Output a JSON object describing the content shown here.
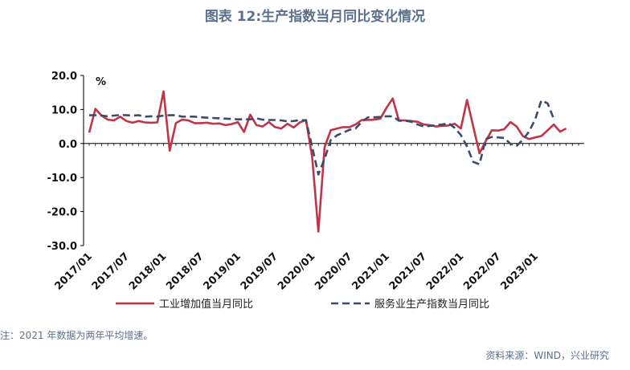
{
  "title": "图表 12:生产指数当月同比变化情况",
  "note": "注：2021 年数据为两年平均增速。",
  "source": "资料来源：WIND，兴业研究",
  "chart_data": {
    "type": "line",
    "ylabel": "%",
    "ylim": [
      -30,
      20
    ],
    "yticks": [
      "20.0",
      "10.0",
      "0.0",
      "-10.0",
      "-20.0",
      "-30.0"
    ],
    "xticks": [
      "2017/01",
      "2017/07",
      "2018/01",
      "2018/07",
      "2019/01",
      "2019/07",
      "2020/01",
      "2020/07",
      "2021/01",
      "2021/07",
      "2022/01",
      "2022/07",
      "2023/01"
    ],
    "x_start": "2017/01",
    "x_end": "2023/09",
    "grid": false,
    "legend": "bottom",
    "series": [
      {
        "name": "工业增加值当月同比",
        "color": "#c0344a",
        "style": "solid",
        "values": [
          3.2,
          10.2,
          8.2,
          7.0,
          6.8,
          7.9,
          6.6,
          6.1,
          6.6,
          6.2,
          6.1,
          6.2,
          15.3,
          -2.1,
          6.0,
          7.0,
          6.8,
          6.0,
          6.0,
          6.1,
          5.8,
          5.9,
          5.4,
          5.7,
          6.3,
          3.4,
          8.5,
          5.4,
          5.0,
          6.3,
          4.8,
          4.4,
          5.8,
          4.7,
          6.2,
          6.9,
          -4.0,
          -25.9,
          -1.1,
          3.9,
          4.4,
          4.8,
          4.8,
          5.6,
          6.9,
          6.9,
          7.0,
          7.3,
          10.5,
          13.2,
          6.8,
          6.8,
          6.6,
          6.4,
          5.6,
          5.4,
          5.0,
          5.2,
          5.3,
          5.8,
          4.4,
          12.8,
          5.0,
          -2.9,
          0.7,
          3.9,
          3.8,
          4.2,
          6.3,
          5.0,
          2.2,
          1.3,
          1.8,
          2.2,
          3.9,
          5.6,
          3.5,
          4.4
        ],
        "y_range_note": "monthly, 2017/01 to 2023/06"
      },
      {
        "name": "服务业生产指数当月同比",
        "color": "#3d4c66",
        "style": "dashed",
        "values": [
          8.3,
          8.3,
          8.2,
          8.0,
          8.2,
          8.4,
          8.3,
          8.2,
          8.3,
          7.9,
          8.0,
          7.9,
          8.2,
          8.3,
          8.3,
          7.9,
          7.9,
          7.9,
          7.7,
          7.6,
          7.5,
          7.4,
          7.3,
          7.2,
          7.1,
          7.1,
          7.1,
          7.4,
          7.0,
          6.9,
          6.9,
          6.8,
          6.5,
          6.6,
          6.9,
          6.8,
          -1.0,
          -9.1,
          -4.5,
          1.0,
          2.4,
          3.2,
          4.0,
          4.4,
          6.4,
          7.7,
          7.7,
          7.8,
          8.0,
          8.0,
          6.7,
          6.7,
          6.4,
          5.6,
          5.0,
          5.2,
          5.4,
          5.6,
          6.0,
          4.6,
          2.5,
          -0.9,
          -5.4,
          -6.1,
          1.3,
          1.9,
          1.8,
          1.6,
          -0.1,
          -0.7,
          1.1,
          3.5,
          7.1,
          12.7,
          11.8,
          7.2
        ],
        "y_range_note": "monthly, 2017/01 to 2023/04"
      }
    ]
  }
}
